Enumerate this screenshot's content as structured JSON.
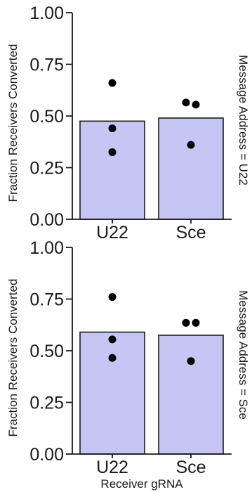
{
  "chart_data": {
    "type": "bar",
    "ylabel": "Fraction Receivers Converted",
    "xlabel": "Receiver gRNA",
    "ylim": [
      0,
      1
    ],
    "yticks": [
      "0.00",
      "0.25",
      "0.50",
      "0.75",
      "1.00"
    ],
    "categories": [
      "U22",
      "Sce"
    ],
    "colors": {
      "bar_fill": "#c5c6f4",
      "bar_stroke": "#1a1a1a",
      "point": "#000000",
      "axis": "#1a1a1a"
    },
    "grid": false,
    "panels": [
      {
        "facet_label": "Message Address = U22",
        "bars": [
          0.475,
          0.49
        ],
        "points": [
          [
            0.66,
            0.44,
            0.325
          ],
          [
            0.565,
            0.555,
            0.36
          ]
        ]
      },
      {
        "facet_label": "Message Address = Sce",
        "bars": [
          0.59,
          0.575
        ],
        "points": [
          [
            0.76,
            0.555,
            0.465
          ],
          [
            0.635,
            0.635,
            0.45
          ]
        ]
      }
    ]
  }
}
